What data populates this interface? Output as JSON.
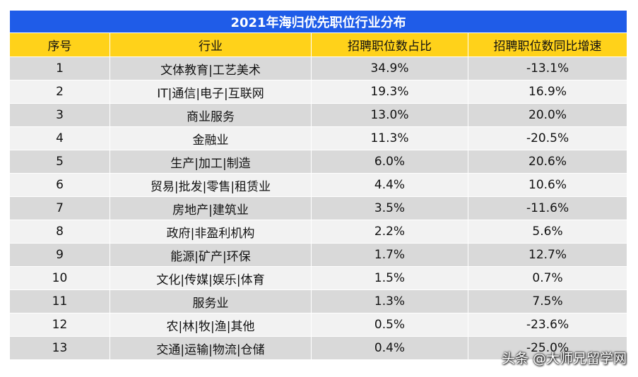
{
  "title": "2021年海归优先职位行业分布",
  "headers": [
    "序号",
    "行业",
    "招聘职位数占比",
    "招聘职位数同比增速"
  ],
  "rows": [
    [
      "1",
      "文体教育|工艺美术",
      "34.9%",
      "-13.1%"
    ],
    [
      "2",
      "IT|通信|电子|互联网",
      "19.3%",
      "16.9%"
    ],
    [
      "3",
      "商业服务",
      "13.0%",
      "20.0%"
    ],
    [
      "4",
      "金融业",
      "11.3%",
      "-20.5%"
    ],
    [
      "5",
      "生产|加工|制造",
      "6.0%",
      "20.6%"
    ],
    [
      "6",
      "贸易|批发|零售|租赁业",
      "4.4%",
      "10.6%"
    ],
    [
      "7",
      "房地产|建筑业",
      "3.5%",
      "-11.6%"
    ],
    [
      "8",
      "政府|非盈利机构",
      "2.2%",
      "5.6%"
    ],
    [
      "9",
      "能源|矿产|环保",
      "1.7%",
      "12.7%"
    ],
    [
      "10",
      "文化|传媒|娱乐|体育",
      "1.5%",
      "0.7%"
    ],
    [
      "11",
      "服务业",
      "1.3%",
      "7.5%"
    ],
    [
      "12",
      "农|林|牧|渔|其他",
      "0.5%",
      "-23.6%"
    ],
    [
      "13",
      "交通|运输|物流|仓储",
      "0.4%",
      "-25.0%"
    ]
  ],
  "watermark": "头条 @大师兄留学网",
  "colors": {
    "title_bg": "#1f5ce8",
    "header_bg": "#ffd21a",
    "row_odd": "#d9d9d9",
    "row_even": "#f2f2f2"
  }
}
